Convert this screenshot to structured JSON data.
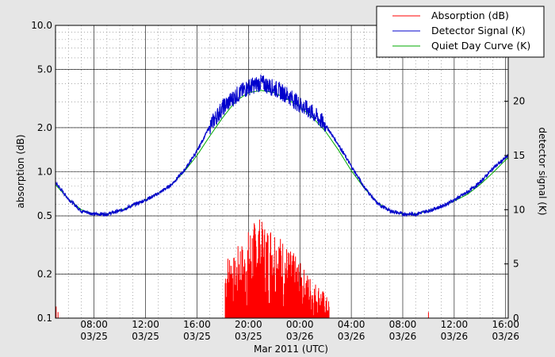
{
  "chart_data": {
    "type": "line",
    "xlabel": "Mar 2011 (UTC)",
    "ylabel_left": "absorption (dB)",
    "ylabel_right": "detector signal (K)",
    "x_range_hours": [
      5,
      16.2
    ],
    "x_tick_labels": [
      {
        "time": "08:00",
        "date": "03/25"
      },
      {
        "time": "12:00",
        "date": "03/25"
      },
      {
        "time": "16:00",
        "date": "03/25"
      },
      {
        "time": "20:00",
        "date": "03/25"
      },
      {
        "time": "00:00",
        "date": "03/26"
      },
      {
        "time": "04:00",
        "date": "03/26"
      },
      {
        "time": "08:00",
        "date": "03/26"
      },
      {
        "time": "12:00",
        "date": "03/26"
      },
      {
        "time": "16:00",
        "date": "03/26"
      }
    ],
    "y_left": {
      "scale": "log",
      "range": [
        0.1,
        10.0
      ],
      "ticks": [
        "0.1",
        "0.2",
        "0.5",
        "1.0",
        "2.0",
        "5.0",
        "10.0"
      ]
    },
    "y_right": {
      "scale": "linear",
      "range": [
        0,
        27
      ],
      "ticks": [
        "0",
        "5",
        "10",
        "15",
        "20",
        "25"
      ]
    },
    "grid": true,
    "legend_position": "top-right",
    "series": [
      {
        "name": "Absorption (dB)",
        "color": "#ff0000",
        "axis": "left",
        "points": [
          [
            5.05,
            0.12
          ],
          [
            5.2,
            0.11
          ],
          [
            18.2,
            0.25
          ],
          [
            18.6,
            0.3
          ],
          [
            19.0,
            0.25
          ],
          [
            19.3,
            0.35
          ],
          [
            19.7,
            0.3
          ],
          [
            20.0,
            0.4
          ],
          [
            20.4,
            0.45
          ],
          [
            20.8,
            0.5
          ],
          [
            21.1,
            0.45
          ],
          [
            21.5,
            0.42
          ],
          [
            21.9,
            0.45
          ],
          [
            22.3,
            0.38
          ],
          [
            22.7,
            0.35
          ],
          [
            23.1,
            0.3
          ],
          [
            23.5,
            0.28
          ],
          [
            23.9,
            0.25
          ],
          [
            24.3,
            0.22
          ],
          [
            24.7,
            0.2
          ],
          [
            25.1,
            0.18
          ],
          [
            25.5,
            0.17
          ],
          [
            25.9,
            0.15
          ],
          [
            26.3,
            0.13
          ],
          [
            34.0,
            0.11
          ]
        ]
      },
      {
        "name": "Detector Signal (K)",
        "color": "#0000cc",
        "axis": "right",
        "points": [
          [
            5.0,
            12.5
          ],
          [
            6.0,
            11.0
          ],
          [
            7.0,
            9.9
          ],
          [
            8.0,
            9.6
          ],
          [
            9.0,
            9.6
          ],
          [
            10.0,
            9.9
          ],
          [
            11.0,
            10.4
          ],
          [
            12.0,
            10.9
          ],
          [
            13.0,
            11.5
          ],
          [
            14.0,
            12.3
          ],
          [
            15.0,
            13.6
          ],
          [
            16.0,
            15.4
          ],
          [
            17.0,
            17.7
          ],
          [
            18.0,
            19.4
          ],
          [
            19.0,
            20.5
          ],
          [
            20.0,
            21.3
          ],
          [
            21.0,
            21.7
          ],
          [
            22.0,
            21.2
          ],
          [
            23.0,
            20.6
          ],
          [
            24.0,
            19.7
          ],
          [
            25.0,
            18.9
          ],
          [
            26.0,
            17.8
          ],
          [
            27.0,
            16.0
          ],
          [
            28.0,
            14.0
          ],
          [
            29.0,
            12.1
          ],
          [
            30.0,
            10.6
          ],
          [
            31.0,
            9.9
          ],
          [
            32.0,
            9.6
          ],
          [
            33.0,
            9.6
          ],
          [
            34.0,
            9.9
          ],
          [
            35.0,
            10.3
          ],
          [
            36.0,
            10.9
          ],
          [
            37.0,
            11.6
          ],
          [
            38.0,
            12.5
          ],
          [
            39.0,
            13.8
          ],
          [
            40.0,
            14.8
          ],
          [
            40.2,
            15.0
          ]
        ]
      },
      {
        "name": "Quiet Day Curve (K)",
        "color": "#00aa00",
        "axis": "right",
        "points": [
          [
            5.0,
            12.3
          ],
          [
            6.0,
            11.0
          ],
          [
            7.0,
            10.0
          ],
          [
            8.0,
            9.6
          ],
          [
            9.0,
            9.6
          ],
          [
            10.0,
            9.9
          ],
          [
            11.0,
            10.4
          ],
          [
            12.0,
            10.9
          ],
          [
            13.0,
            11.5
          ],
          [
            14.0,
            12.3
          ],
          [
            15.0,
            13.5
          ],
          [
            16.0,
            15.0
          ],
          [
            17.0,
            16.8
          ],
          [
            18.0,
            18.5
          ],
          [
            19.0,
            20.0
          ],
          [
            20.0,
            20.8
          ],
          [
            21.0,
            21.0
          ],
          [
            22.0,
            20.8
          ],
          [
            23.0,
            20.2
          ],
          [
            24.0,
            19.5
          ],
          [
            25.0,
            18.5
          ],
          [
            26.0,
            17.2
          ],
          [
            27.0,
            15.5
          ],
          [
            28.0,
            13.6
          ],
          [
            29.0,
            12.0
          ],
          [
            30.0,
            10.7
          ],
          [
            31.0,
            9.9
          ],
          [
            32.0,
            9.6
          ],
          [
            33.0,
            9.6
          ],
          [
            34.0,
            9.9
          ],
          [
            35.0,
            10.3
          ],
          [
            36.0,
            10.8
          ],
          [
            37.0,
            11.4
          ],
          [
            38.0,
            12.3
          ],
          [
            39.0,
            13.4
          ],
          [
            40.0,
            14.6
          ],
          [
            40.2,
            14.8
          ]
        ]
      }
    ]
  }
}
